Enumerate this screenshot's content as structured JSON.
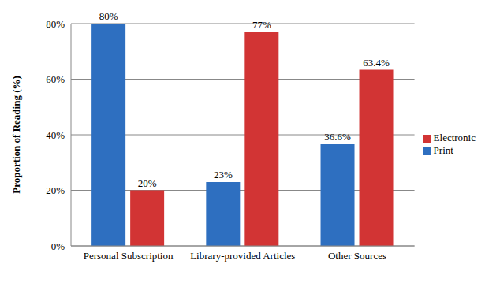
{
  "chart_data": {
    "type": "bar",
    "y_label": "Proportion of Reading (%)",
    "categories": [
      "Personal Subscription",
      "Library-provided Articles",
      "Other Sources"
    ],
    "series": [
      {
        "name": "Print",
        "color": "#2e6fc0",
        "values": [
          80,
          23,
          36.6
        ],
        "value_labels": [
          "80%",
          "23%",
          "36.6%"
        ]
      },
      {
        "name": "Electronic",
        "color": "#d23434",
        "values": [
          20,
          77,
          63.4
        ],
        "value_labels": [
          "20%",
          "77%",
          "63.4%"
        ]
      }
    ],
    "ylim": [
      0,
      80
    ],
    "yticks": [
      {
        "value": 0,
        "label": "0%"
      },
      {
        "value": 20,
        "label": "20%"
      },
      {
        "value": 40,
        "label": "40%"
      },
      {
        "value": 60,
        "label": "60%"
      },
      {
        "value": 80,
        "label": "80%"
      }
    ],
    "grid": true,
    "legend": "right",
    "data_labels": true
  }
}
